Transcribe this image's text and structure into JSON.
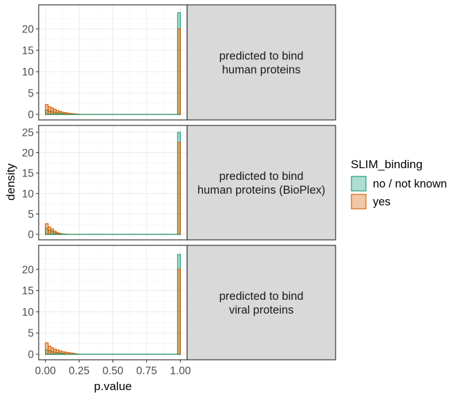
{
  "chart_data": {
    "type": "bar",
    "chart_subtype": "faceted overlaid density histogram",
    "xlabel": "p.value",
    "ylabel": "density",
    "xlim": [
      0,
      1
    ],
    "x_ticks": [
      "0.00",
      "0.25",
      "0.50",
      "0.75",
      "1.00"
    ],
    "bin_width": 0.02,
    "grid": true,
    "legend_position": "right",
    "legend": {
      "title": "SLIM_binding",
      "entries": [
        {
          "label": "no / not known",
          "fill": "#1b9e77",
          "stroke": "#1b9e77"
        },
        {
          "label": "yes",
          "fill": "#d95f02",
          "stroke": "#d95f02"
        }
      ]
    },
    "facets": [
      {
        "strip_label_lines": [
          "predicted to bind",
          "human proteins"
        ],
        "ylim": [
          0,
          25
        ],
        "y_ticks": [
          0,
          5,
          10,
          15,
          20
        ],
        "series": [
          {
            "name": "no / not known",
            "x": [
              0.01,
              0.03,
              0.05,
              0.07,
              0.09,
              0.11,
              0.13,
              0.15,
              0.17,
              0.99
            ],
            "values": [
              1.0,
              0.8,
              0.7,
              0.5,
              0.4,
              0.3,
              0.2,
              0.1,
              0.05,
              23.8
            ]
          },
          {
            "name": "yes",
            "x": [
              0.01,
              0.03,
              0.05,
              0.07,
              0.09,
              0.11,
              0.13,
              0.15,
              0.17,
              0.19,
              0.21,
              0.23,
              0.25,
              0.99
            ],
            "values": [
              2.3,
              1.8,
              1.5,
              1.2,
              0.9,
              0.7,
              0.5,
              0.4,
              0.3,
              0.2,
              0.15,
              0.1,
              0.05,
              20.0
            ]
          }
        ]
      },
      {
        "strip_label_lines": [
          "predicted to bind",
          "human proteins (BioPlex)"
        ],
        "ylim": [
          0,
          26
        ],
        "y_ticks": [
          0,
          5,
          10,
          15,
          20,
          25
        ],
        "series": [
          {
            "name": "no / not known",
            "x": [
              0.01,
              0.03,
              0.05,
              0.07,
              0.09,
              0.11,
              0.99
            ],
            "values": [
              1.5,
              1.0,
              0.8,
              0.4,
              0.2,
              0.1,
              25.0
            ]
          },
          {
            "name": "yes",
            "x": [
              0.01,
              0.03,
              0.05,
              0.07,
              0.09,
              0.11,
              0.13,
              0.15,
              0.99
            ],
            "values": [
              2.6,
              1.8,
              1.3,
              0.8,
              0.4,
              0.2,
              0.1,
              0.05,
              22.5
            ]
          }
        ]
      },
      {
        "strip_label_lines": [
          "predicted to bind",
          "viral proteins"
        ],
        "ylim": [
          0,
          25
        ],
        "y_ticks": [
          0,
          5,
          10,
          15,
          20
        ],
        "series": [
          {
            "name": "no / not known",
            "x": [
              0.01,
              0.03,
              0.05,
              0.07,
              0.09,
              0.11,
              0.13,
              0.15,
              0.99
            ],
            "values": [
              1.0,
              0.9,
              0.7,
              0.5,
              0.4,
              0.3,
              0.2,
              0.1,
              23.5
            ]
          },
          {
            "name": "yes",
            "x": [
              0.01,
              0.03,
              0.05,
              0.07,
              0.09,
              0.11,
              0.13,
              0.15,
              0.17,
              0.19,
              0.21,
              0.23,
              0.99
            ],
            "values": [
              2.7,
              1.9,
              1.5,
              1.2,
              1.0,
              0.8,
              0.6,
              0.5,
              0.4,
              0.3,
              0.2,
              0.1,
              20.0
            ]
          }
        ]
      }
    ]
  }
}
